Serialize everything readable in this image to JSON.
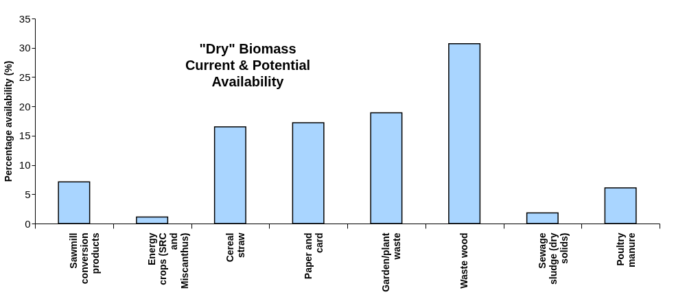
{
  "chart_data": {
    "type": "bar",
    "title": "\"Dry\" Biomass Current & Potential Availability",
    "ylabel": "Percentage availability (%)",
    "categories": [
      "Sawmill conversion products",
      "Energy crops (SRC and Miscanthus)",
      "Cereal straw",
      "Paper and card",
      "Garden/plant waste",
      "Waste wood",
      "Sewage sludge (dry solids)",
      "Poultry manure"
    ],
    "values": [
      7.1,
      1.1,
      16.5,
      17.2,
      18.9,
      30.7,
      1.8,
      6.1
    ],
    "color": "#a9d5ff",
    "ylim": [
      0,
      35
    ],
    "yticks": [
      0,
      5,
      10,
      15,
      20,
      25,
      30,
      35
    ],
    "grid": false
  }
}
